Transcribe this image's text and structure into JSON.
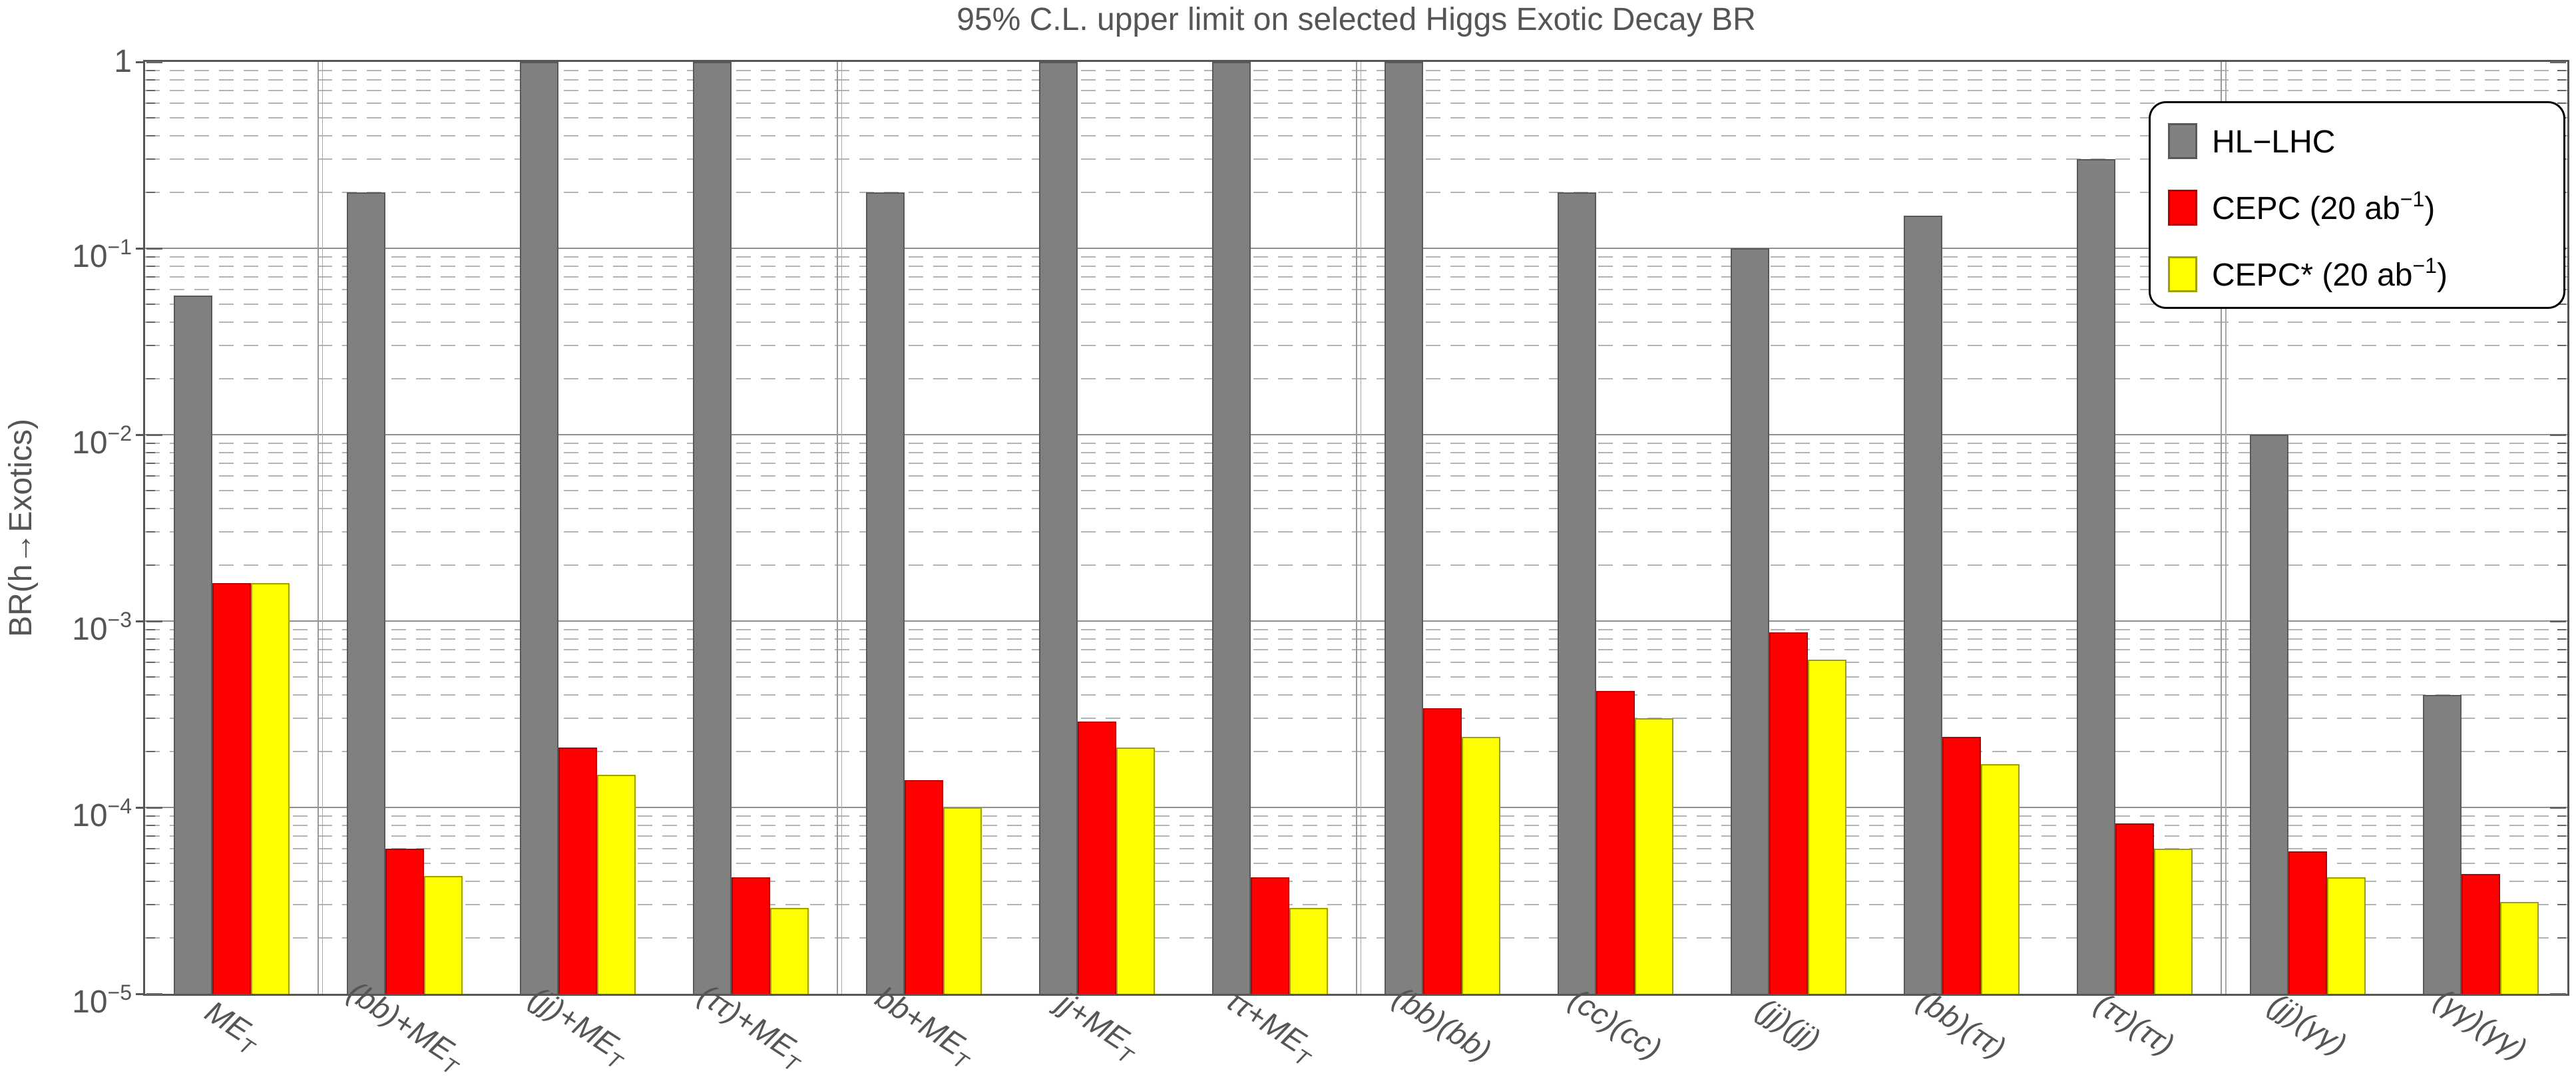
{
  "chart_data": {
    "type": "bar",
    "title": "95% C.L. upper limit on selected Higgs Exotic Decay BR",
    "ylabel": "BR(h→Exotics)",
    "xlabel": "",
    "y_scale": "log",
    "ylim": [
      1e-05,
      1
    ],
    "ytick_labels": [
      "1",
      "10⁻¹",
      "10⁻²",
      "10⁻³",
      "10⁻⁴",
      "10⁻⁵"
    ],
    "grid": "major solid gray, minor dashed light gray",
    "legend_position": "upper right",
    "categories": [
      "ME_T",
      "(bb)+ME_T",
      "(jj)+ME_T",
      "(ττ)+ME_T",
      "bb+ME_T",
      "jj+ME_T",
      "ττ+ME_T",
      "(bb)(bb)",
      "(cc)(cc)",
      "(jj)(jj)",
      "(bb)(ττ)",
      "(ττ)(ττ)",
      "(jj)(γγ)",
      "(γγ)(γγ)"
    ],
    "category_label_parts": [
      {
        "pre": "ME",
        "sub": "T"
      },
      {
        "pre": "(bb)+ME",
        "sub": "T"
      },
      {
        "pre": "(jj)+ME",
        "sub": "T"
      },
      {
        "pre": "(ττ)+ME",
        "sub": "T"
      },
      {
        "pre": "bb+ME",
        "sub": "T"
      },
      {
        "pre": "jj+ME",
        "sub": "T"
      },
      {
        "pre": "ττ+ME",
        "sub": "T"
      },
      {
        "pre": "(bb)(bb)",
        "sub": ""
      },
      {
        "pre": "(cc)(cc)",
        "sub": ""
      },
      {
        "pre": "(jj)(jj)",
        "sub": ""
      },
      {
        "pre": "(bb)(ττ)",
        "sub": ""
      },
      {
        "pre": "(ττ)(ττ)",
        "sub": ""
      },
      {
        "pre": "(jj)(γγ)",
        "sub": ""
      },
      {
        "pre": "(γγ)(γγ)",
        "sub": ""
      }
    ],
    "series": [
      {
        "name": "HL−LHC",
        "fill": "#808080",
        "edge": "#595959",
        "values": [
          0.056,
          0.2,
          1,
          1,
          0.2,
          1,
          1,
          1,
          0.2,
          0.1,
          0.15,
          0.3,
          0.01,
          0.0004
        ]
      },
      {
        "name": "CEPC (20 ab⁻¹)",
        "fill": "#ff0000",
        "edge": "#b80000",
        "values": [
          0.0016,
          6e-05,
          0.00021,
          4.2e-05,
          0.00014,
          0.00029,
          4.2e-05,
          0.00034,
          0.00042,
          0.00087,
          0.00024,
          8.2e-05,
          5.8e-05,
          4.4e-05
        ]
      },
      {
        "name": "CEPC* (20 ab⁻¹)",
        "fill": "#ffff00",
        "edge": "#a0a000",
        "values": [
          0.0016,
          4.3e-05,
          0.00015,
          2.9e-05,
          0.0001,
          0.00021,
          2.9e-05,
          0.00024,
          0.0003,
          0.00062,
          0.00017,
          6e-05,
          4.2e-05,
          3.1e-05
        ]
      }
    ],
    "separators_after_category_index": [
      0,
      3,
      6,
      11
    ]
  },
  "legend": {
    "entries": [
      {
        "pre": "HL−LHC",
        "sup": "",
        "post": ""
      },
      {
        "pre": "CEPC (20 ab",
        "sup": "−1",
        "post": ")"
      },
      {
        "pre": "CEPC* (20 ab",
        "sup": "−1",
        "post": ")"
      }
    ]
  },
  "colors": {
    "hl_lhc": "#808080",
    "cepc": "#ff0000",
    "cepc_star": "#ffff00",
    "axis": "#555555",
    "major_grid": "#909090",
    "minor_grid": "#b3b3b3"
  }
}
